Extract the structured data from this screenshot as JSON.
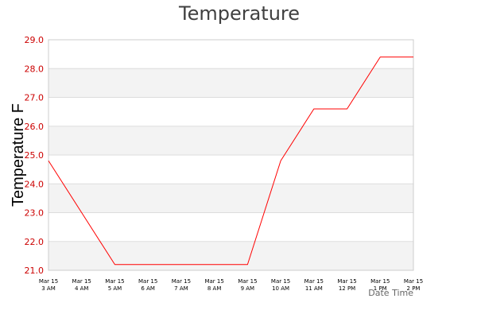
{
  "chart_data": {
    "type": "line",
    "title": "Temperature",
    "xlabel": "Date Time",
    "ylabel": "Temperature F",
    "categories": [
      [
        "Mar 15",
        "3 AM"
      ],
      [
        "Mar 15",
        "4 AM"
      ],
      [
        "Mar 15",
        "5 AM"
      ],
      [
        "Mar 15",
        "6 AM"
      ],
      [
        "Mar 15",
        "7 AM"
      ],
      [
        "Mar 15",
        "8 AM"
      ],
      [
        "Mar 15",
        "9 AM"
      ],
      [
        "Mar 15",
        "10 AM"
      ],
      [
        "Mar 15",
        "11 AM"
      ],
      [
        "Mar 15",
        "12 PM"
      ],
      [
        "Mar 15",
        "1 PM"
      ],
      [
        "Mar 15",
        "2 PM"
      ]
    ],
    "series": [
      {
        "values": [
          24.8,
          23.0,
          21.2,
          21.2,
          21.2,
          21.2,
          21.2,
          24.8,
          26.6,
          26.6,
          28.4,
          28.4
        ]
      }
    ],
    "ylim": [
      21.0,
      29.0
    ],
    "yticks": [
      "21.0",
      "22.0",
      "23.0",
      "24.0",
      "25.0",
      "26.0",
      "27.0",
      "28.0",
      "29.0"
    ],
    "grid": true,
    "alternating_bands": true,
    "colors": {
      "line": "#ff0000",
      "tick_labels": "#cc0000",
      "band": "#f3f3f3",
      "grid": "#dddddd"
    }
  }
}
